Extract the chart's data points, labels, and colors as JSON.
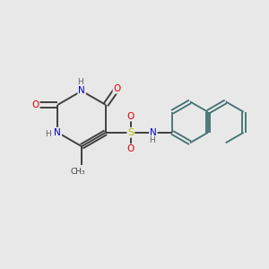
{
  "bg_color": "#e8e8e8",
  "atom_colors": {
    "C": "#404040",
    "N": "#0000cc",
    "O": "#dd0000",
    "S": "#bbbb00",
    "H": "#606060"
  },
  "bond_color": "#404040",
  "naph_color": "#407070",
  "figsize": [
    3.0,
    3.0
  ],
  "dpi": 100
}
